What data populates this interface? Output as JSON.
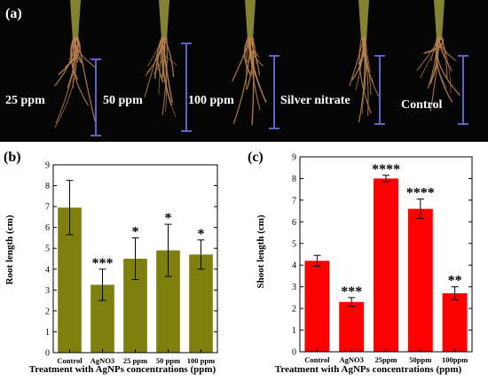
{
  "photo": {
    "panel_label": "(a)",
    "groups": [
      "25 ppm",
      "50 ppm",
      "100 ppm",
      "Silver nitrate",
      "Control"
    ]
  },
  "colors": {
    "olive": "#7f7f0d",
    "red": "#ff0000",
    "photo_bg": "#050505",
    "scale_bar": "#5e63c8",
    "root": "#b8824e"
  },
  "chart_data": [
    {
      "type": "bar",
      "panel_label": "(b)",
      "categories": [
        "Control",
        "AgNO3",
        "25 ppm",
        "50 ppm",
        "100 ppm"
      ],
      "values": [
        6.95,
        3.25,
        4.5,
        4.9,
        4.7
      ],
      "errors": [
        1.3,
        0.75,
        1.0,
        1.25,
        0.7
      ],
      "significance": [
        "",
        "***",
        "*",
        "*",
        "*"
      ],
      "xlabel": "Treatment with AgNPs concentrations (ppm)",
      "ylabel": "Root length (cm)",
      "ylim": [
        0,
        9
      ],
      "yticks": [
        0,
        1,
        2,
        3,
        4,
        5,
        6,
        7,
        8,
        9
      ],
      "grid": false,
      "bar_color": "#7f7f0d"
    },
    {
      "type": "bar",
      "panel_label": "(c)",
      "categories": [
        "Control",
        "AgNO3",
        "25ppm",
        "50ppm",
        "100ppm"
      ],
      "values": [
        4.2,
        2.3,
        8.0,
        6.6,
        2.7
      ],
      "errors": [
        0.25,
        0.2,
        0.15,
        0.45,
        0.3
      ],
      "significance": [
        "",
        "***",
        "****",
        "****",
        "**"
      ],
      "xlabel": "Treatment with AgNPs concentrations (ppm)",
      "ylabel": "Shoot length (cm)",
      "ylim": [
        0,
        9
      ],
      "yticks": [
        0,
        1,
        2,
        3,
        4,
        5,
        6,
        7,
        8,
        9
      ],
      "grid": false,
      "bar_color": "#ff0000"
    }
  ]
}
